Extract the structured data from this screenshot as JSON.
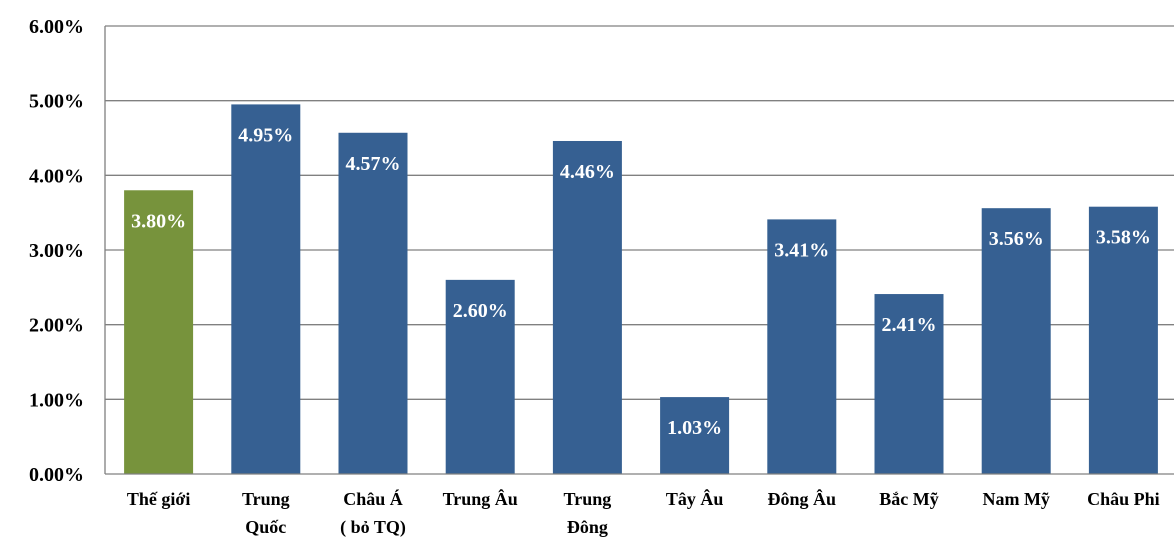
{
  "chart_data": {
    "type": "bar",
    "categories": [
      "Thế giới",
      "Trung Quốc",
      "Châu Á ( bỏ TQ)",
      "Trung Âu",
      "Trung Đông",
      "Tây Âu",
      "Đông Âu",
      "Bắc Mỹ",
      "Nam Mỹ",
      "Châu Phi"
    ],
    "category_lines": [
      [
        "Thế giới"
      ],
      [
        "Trung",
        "Quốc"
      ],
      [
        "Châu Á",
        "( bỏ TQ)"
      ],
      [
        "Trung Âu"
      ],
      [
        "Trung",
        "Đông"
      ],
      [
        "Tây Âu"
      ],
      [
        "Đông Âu"
      ],
      [
        "Bắc Mỹ"
      ],
      [
        "Nam Mỹ"
      ],
      [
        "Châu Phi"
      ]
    ],
    "values": [
      3.8,
      4.95,
      4.57,
      2.6,
      4.46,
      1.03,
      3.41,
      2.41,
      3.56,
      3.58
    ],
    "data_labels": [
      "3.80%",
      "4.95%",
      "4.57%",
      "2.60%",
      "4.46%",
      "1.03%",
      "3.41%",
      "2.41%",
      "3.56%",
      "3.58%"
    ],
    "bar_colors": [
      "#77933c",
      "#366092",
      "#366092",
      "#366092",
      "#366092",
      "#366092",
      "#366092",
      "#366092",
      "#366092",
      "#366092"
    ],
    "ylim": [
      0,
      6
    ],
    "yticks": [
      0,
      1,
      2,
      3,
      4,
      5,
      6
    ],
    "ytick_labels": [
      "0.00%",
      "1.00%",
      "2.00%",
      "3.00%",
      "4.00%",
      "5.00%",
      "6.00%"
    ],
    "grid": true,
    "title": "",
    "xlabel": "",
    "ylabel": ""
  }
}
